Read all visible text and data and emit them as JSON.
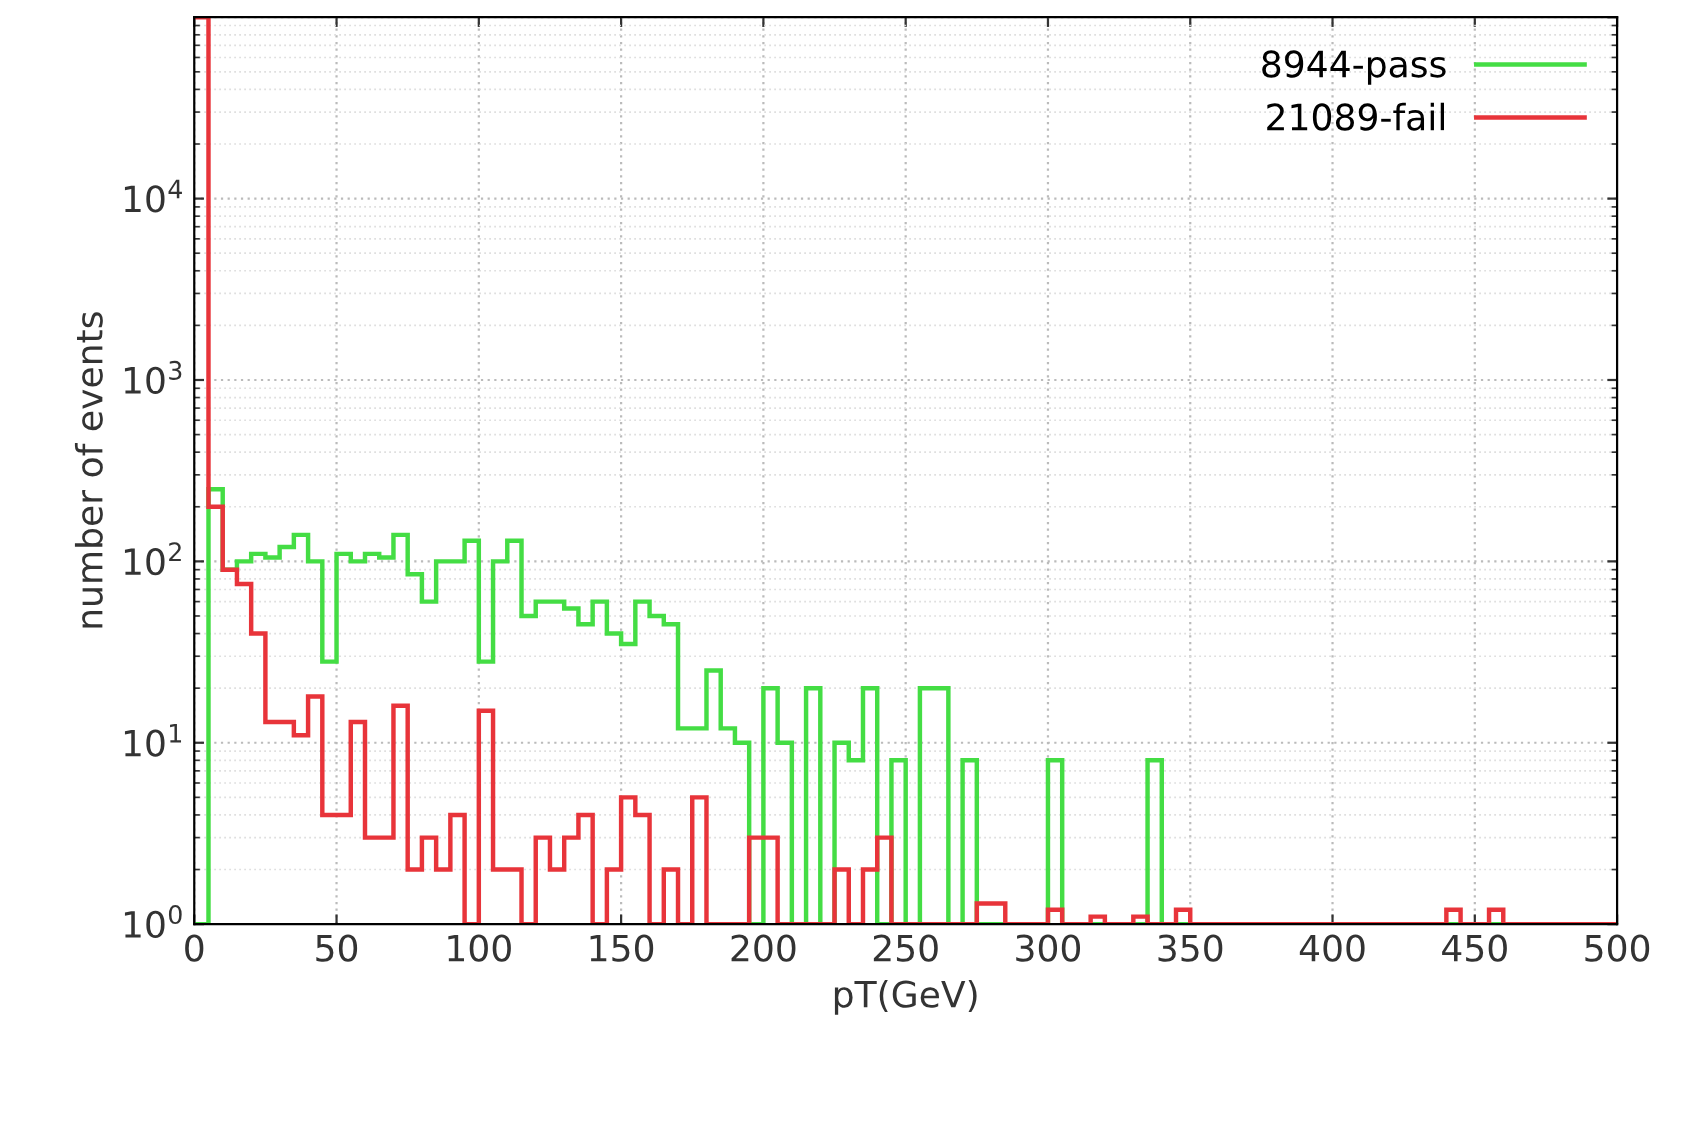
{
  "chart_data": {
    "type": "histogram",
    "xlabel": "pT(GeV)",
    "ylabel": "number of events",
    "bins": [
      0,
      5,
      10,
      15,
      20,
      25,
      30,
      35,
      40,
      45,
      50,
      55,
      60,
      65,
      70,
      75,
      80,
      85,
      90,
      95,
      100,
      105,
      110,
      115,
      120,
      125,
      130,
      135,
      140,
      145,
      150,
      155,
      160,
      165,
      170,
      175,
      180,
      185,
      190,
      195,
      200,
      205,
      210,
      215,
      220,
      225,
      230,
      235,
      240,
      245,
      250,
      255,
      260,
      265,
      270,
      275,
      280,
      285,
      290,
      295,
      300,
      305,
      310,
      315,
      320,
      325,
      330,
      335,
      340,
      345,
      350,
      355,
      360,
      365,
      370,
      375,
      380,
      385,
      390,
      395,
      400,
      405,
      410,
      415,
      420,
      425,
      430,
      435,
      440,
      445,
      450,
      455,
      460,
      465,
      470,
      475,
      480,
      485,
      490,
      495,
      500
    ],
    "series": [
      {
        "name": "8944-pass",
        "color": "#44dd44",
        "values": [
          1,
          250,
          90,
          100,
          110,
          105,
          120,
          140,
          100,
          28,
          110,
          100,
          110,
          105,
          140,
          85,
          60,
          100,
          100,
          130,
          28,
          100,
          130,
          50,
          60,
          60,
          55,
          45,
          60,
          40,
          35,
          60,
          50,
          45,
          12,
          12,
          25,
          12,
          10,
          1,
          20,
          10,
          1,
          20,
          1,
          10,
          8,
          20,
          1,
          8,
          1,
          20,
          20,
          1,
          8,
          1,
          1,
          1,
          1,
          1,
          8,
          1,
          1,
          1,
          1,
          1,
          1,
          8,
          1,
          1,
          1,
          1,
          1,
          1,
          1,
          1,
          1,
          1,
          1,
          1,
          1,
          1,
          1,
          1,
          1,
          1,
          1,
          1,
          1,
          1,
          1,
          1,
          1,
          1,
          1,
          1,
          1,
          1,
          1,
          1
        ]
      },
      {
        "name": "21089-fail",
        "color": "#e8343a",
        "values": [
          100000,
          200,
          90,
          75,
          40,
          13,
          13,
          11,
          18,
          4,
          4,
          13,
          3,
          3,
          16,
          2,
          3,
          2,
          4,
          1,
          15,
          2,
          2,
          1,
          3,
          2,
          3,
          4,
          1,
          2,
          5,
          4,
          1,
          2,
          1,
          5,
          1,
          1,
          1,
          3,
          3,
          1,
          1,
          1,
          1,
          2,
          1,
          2,
          3,
          1,
          1,
          1,
          1,
          1,
          1,
          1.3,
          1.3,
          1,
          1,
          1,
          1.2,
          1,
          1,
          1.1,
          1,
          1,
          1.1,
          1,
          1,
          1.2,
          1,
          1,
          1,
          1,
          1,
          1,
          1,
          1,
          1,
          1,
          1,
          1,
          1,
          1,
          1,
          1,
          1,
          1,
          1.2,
          1,
          1,
          1.2,
          1,
          1,
          1,
          1,
          1,
          1,
          1,
          1
        ]
      }
    ],
    "log": "y",
    "xlim": [
      0,
      500
    ],
    "ylim": [
      1,
      100000
    ],
    "xticks": [
      0,
      50,
      100,
      150,
      200,
      250,
      300,
      350,
      400,
      450,
      500
    ],
    "yticks": [
      {
        "value": 1,
        "label": "10$^{0}$"
      },
      {
        "value": 10,
        "label": "10$^{1}$"
      },
      {
        "value": 100,
        "label": "10$^{2}$"
      },
      {
        "value": 1000,
        "label": "10$^{3}$"
      },
      {
        "value": 10000,
        "label": "10$^{4}$"
      },
      {
        "value": 100000,
        "label": null
      }
    ],
    "grid": true,
    "legend": "top right"
  }
}
